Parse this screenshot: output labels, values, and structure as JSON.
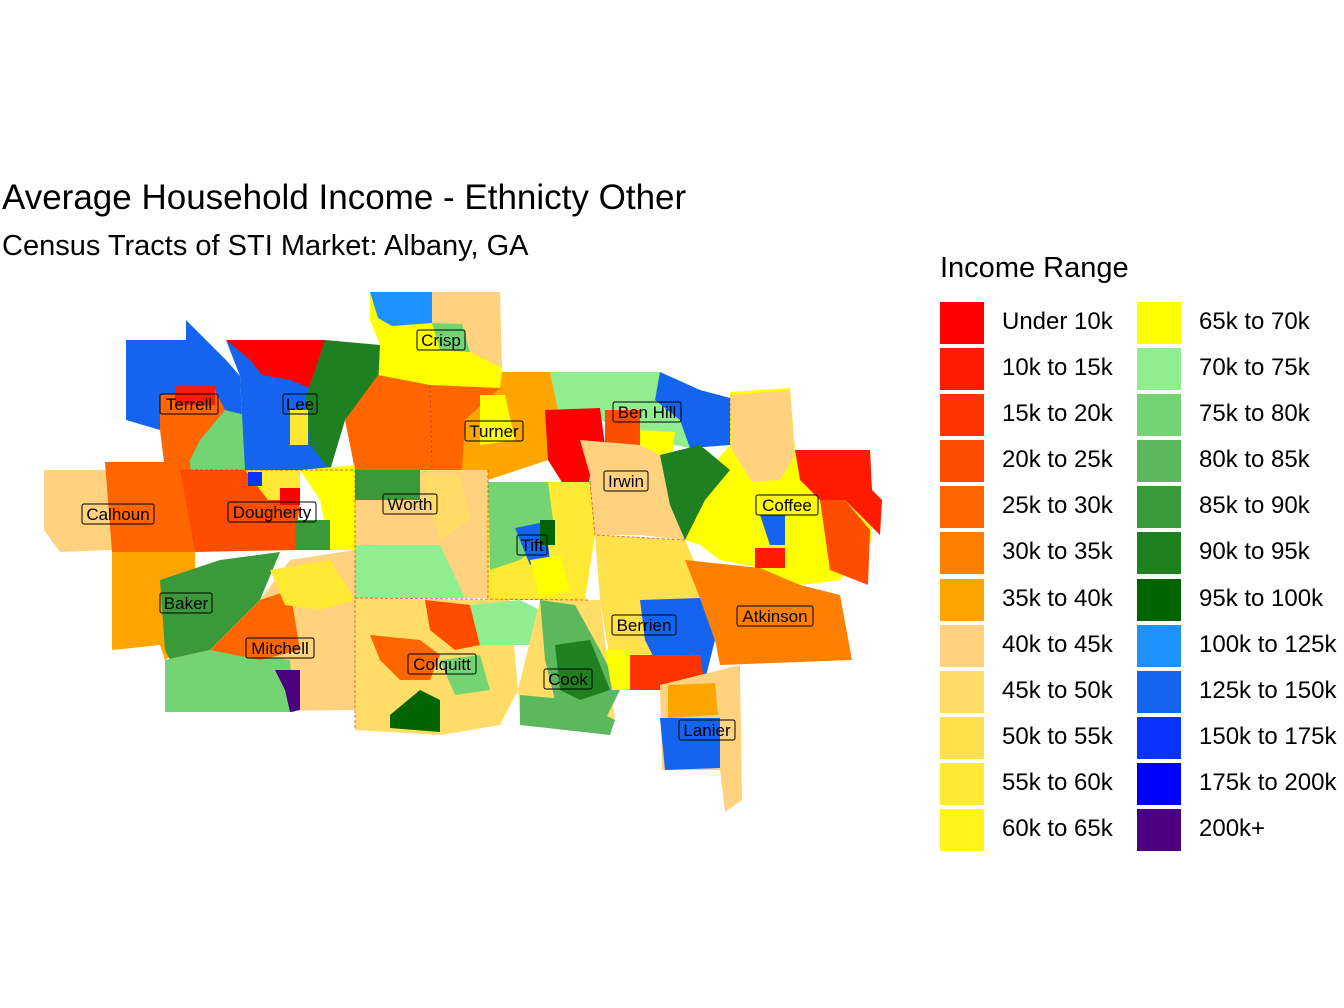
{
  "title": "Average Household Income - Ethnicty Other",
  "subtitle": "Census Tracts of STI Market: Albany, GA",
  "legend": {
    "title": "Income Range",
    "placement": "right",
    "columns": [
      [
        {
          "label": "Under 10k",
          "color": "#ff0000"
        },
        {
          "label": "10k to 15k",
          "color": "#ff1a00"
        },
        {
          "label": "15k to 20k",
          "color": "#ff3300"
        },
        {
          "label": "20k to 25k",
          "color": "#ff4d00"
        },
        {
          "label": "25k to 30k",
          "color": "#ff6600"
        },
        {
          "label": "30k to 35k",
          "color": "#ff8000"
        },
        {
          "label": "35k to 40k",
          "color": "#ffa500"
        },
        {
          "label": "40k to 45k",
          "color": "#ffd27f"
        },
        {
          "label": "45k to 50k",
          "color": "#ffdd66"
        },
        {
          "label": "50k to 55k",
          "color": "#ffe14d"
        },
        {
          "label": "55k to 60k",
          "color": "#ffe933"
        },
        {
          "label": "60k to 65k",
          "color": "#fff51a"
        }
      ],
      [
        {
          "label": "65k to 70k",
          "color": "#ffff00"
        },
        {
          "label": "70k to 75k",
          "color": "#90ee90"
        },
        {
          "label": "75k to 80k",
          "color": "#74d474"
        },
        {
          "label": "80k to 85k",
          "color": "#5cb85c"
        },
        {
          "label": "85k to 90k",
          "color": "#3a9a3a"
        },
        {
          "label": "90k to 95k",
          "color": "#1e8020"
        },
        {
          "label": "95k to 100k",
          "color": "#006400"
        },
        {
          "label": "100k to 125k",
          "color": "#1e90ff"
        },
        {
          "label": "125k to 150k",
          "color": "#1464f0"
        },
        {
          "label": "150k to 175k",
          "color": "#0a32ff"
        },
        {
          "label": "175k to 200k",
          "color": "#0000ff"
        },
        {
          "label": "200k+",
          "color": "#4b0082"
        }
      ]
    ]
  },
  "counties": [
    {
      "name": "Crisp",
      "color": "#ffff00"
    },
    {
      "name": "Terrell",
      "color": "#1464f0"
    },
    {
      "name": "Lee",
      "color": "#1464f0"
    },
    {
      "name": "Turner",
      "color": "#ffa500"
    },
    {
      "name": "Ben Hill",
      "color": "#90ee90"
    },
    {
      "name": "Irwin",
      "color": "#ffd27f"
    },
    {
      "name": "Calhoun",
      "color": "#ff6600"
    },
    {
      "name": "Dougherty",
      "color": "#ff4d00"
    },
    {
      "name": "Worth",
      "color": "#ffd27f"
    },
    {
      "name": "Tift",
      "color": "#ffe933"
    },
    {
      "name": "Coffee",
      "color": "#ffff00"
    },
    {
      "name": "Baker",
      "color": "#3a9a3a"
    },
    {
      "name": "Atkinson",
      "color": "#ff8000"
    },
    {
      "name": "Berrien",
      "color": "#ffe14d"
    },
    {
      "name": "Mitchell",
      "color": "#74d474"
    },
    {
      "name": "Colquitt",
      "color": "#ffdd66"
    },
    {
      "name": "Cook",
      "color": "#5cb85c"
    },
    {
      "name": "Lanier",
      "color": "#1464f0"
    }
  ]
}
